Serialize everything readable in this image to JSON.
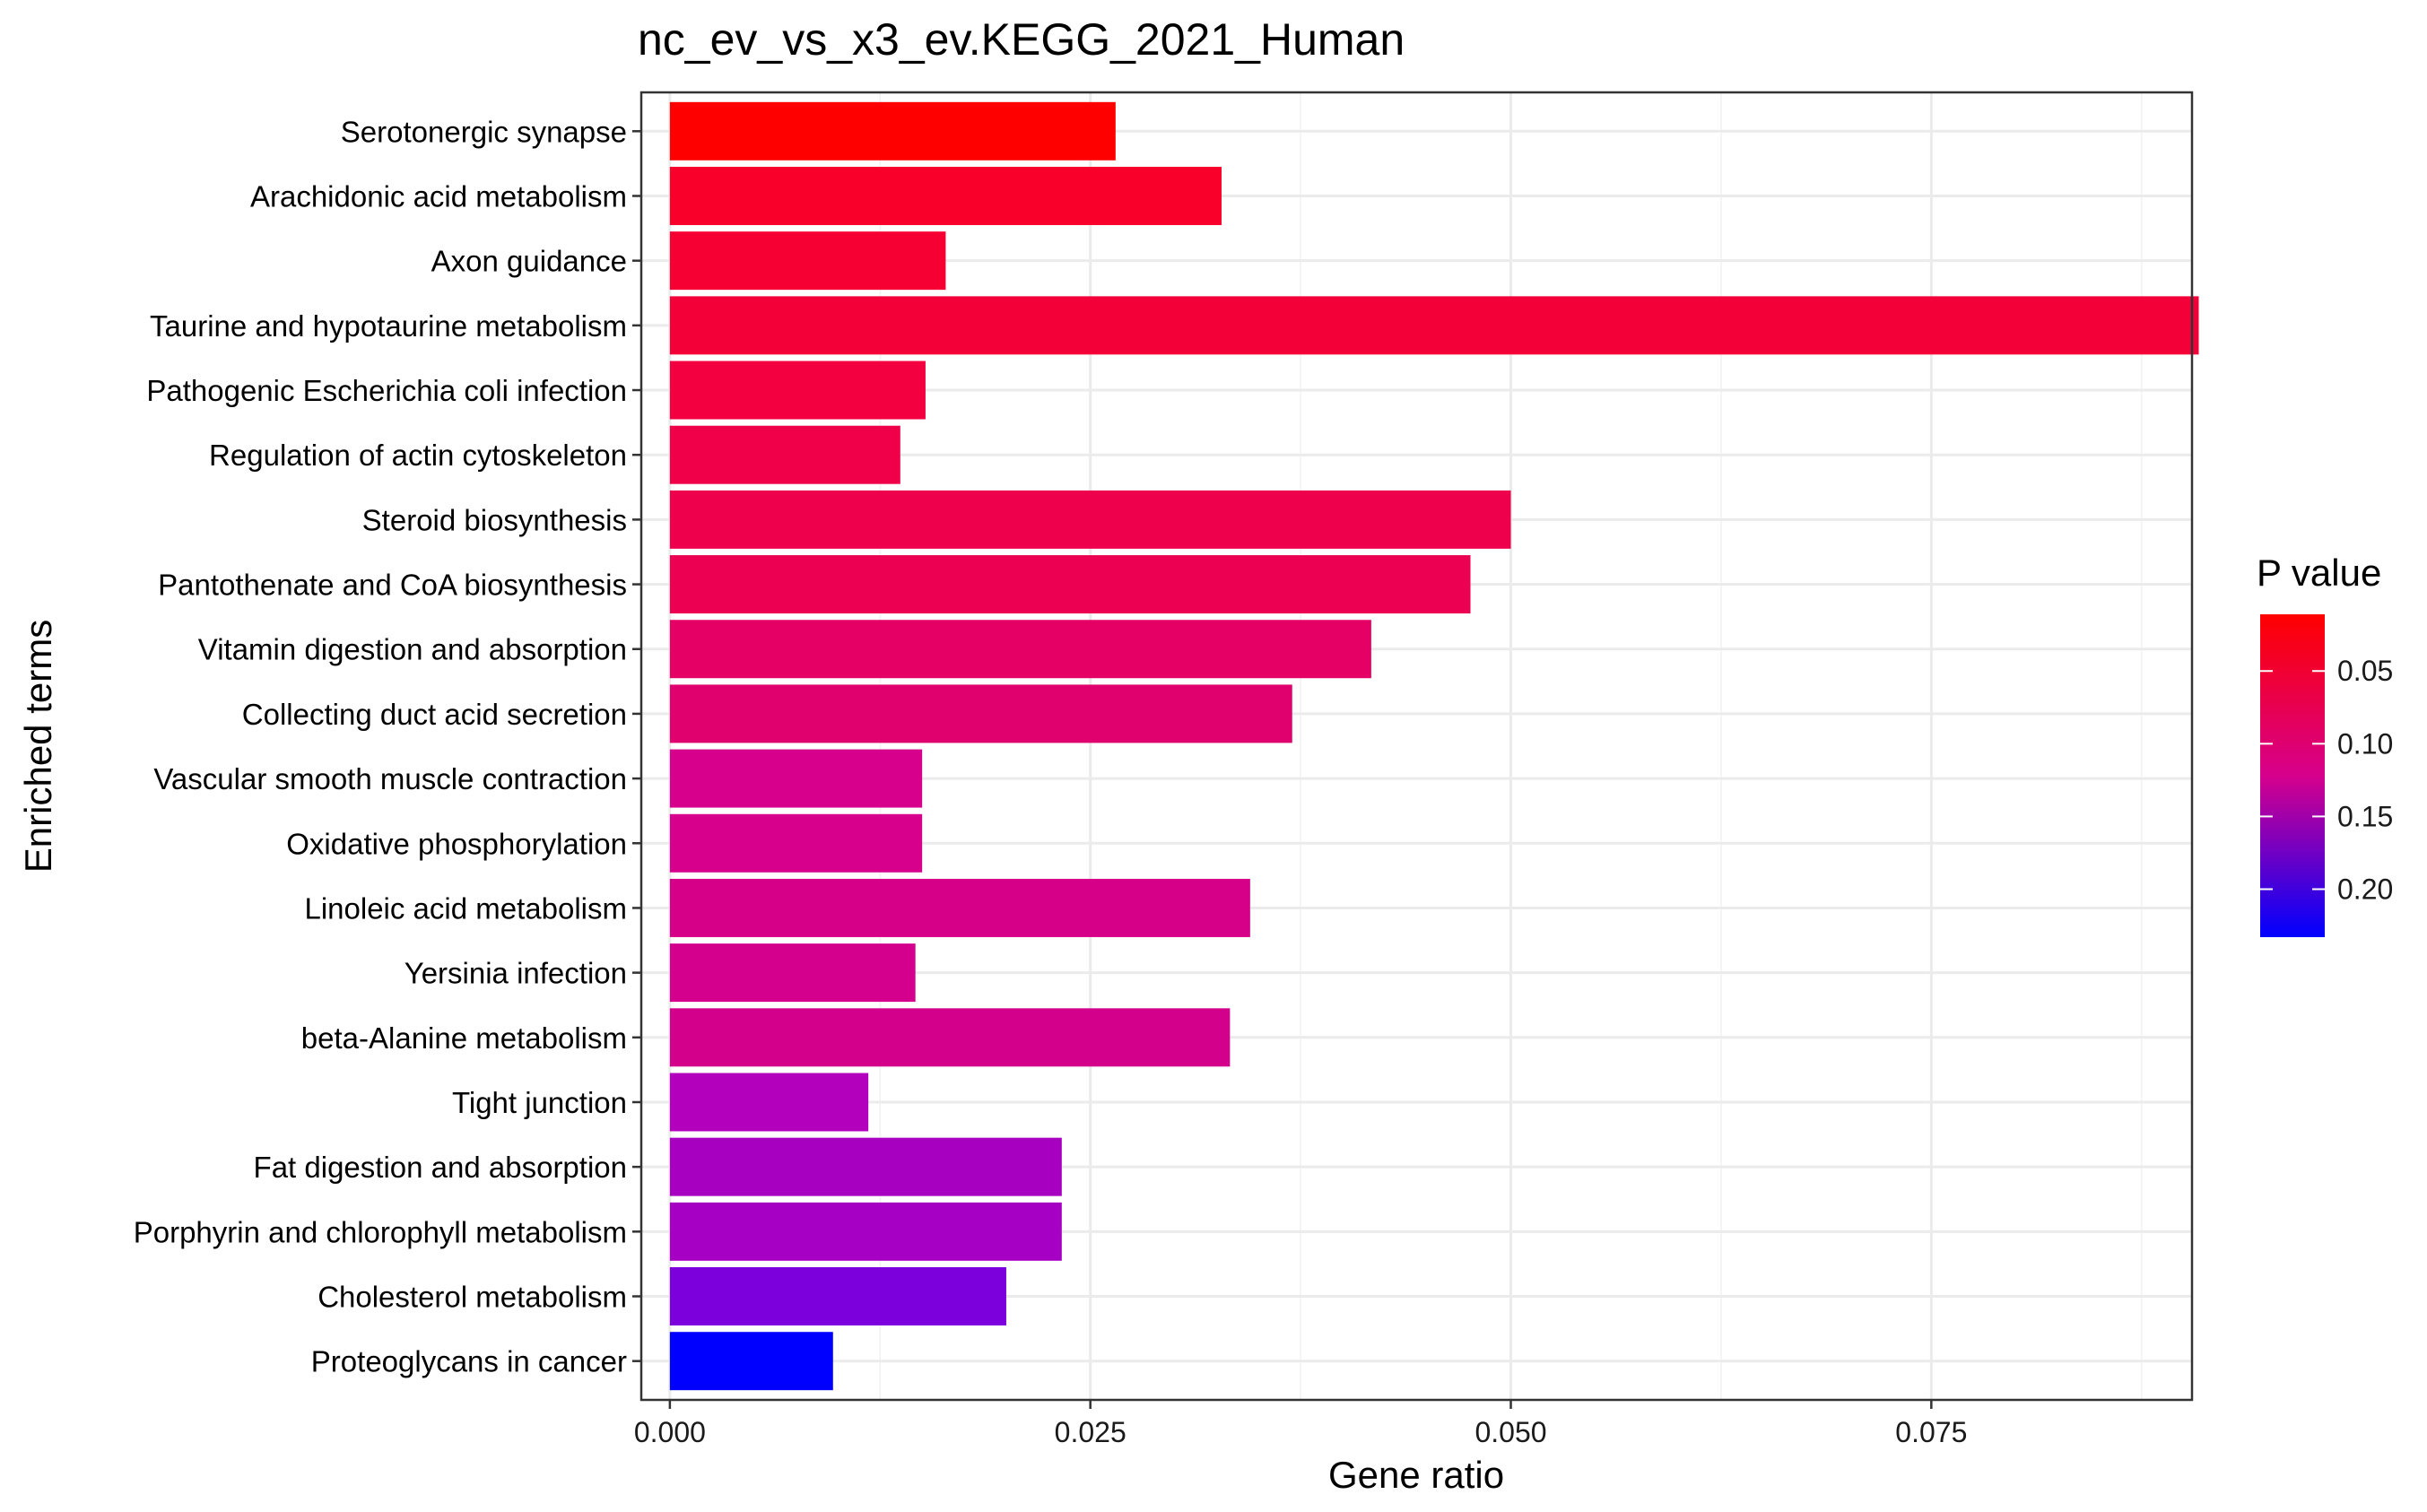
{
  "chart_data": {
    "type": "bar",
    "orientation": "horizontal",
    "title": "nc_ev_vs_x3_ev.KEGG_2021_Human",
    "xlabel": "Gene ratio",
    "ylabel": "Enriched terms",
    "xlim": [
      -0.0017,
      0.0905
    ],
    "xticks": [
      "0.000",
      "0.025",
      "0.050",
      "0.075"
    ],
    "xtick_values": [
      0,
      0.025,
      0.05,
      0.075
    ],
    "grid": true,
    "categories": [
      "Serotonergic synapse",
      "Arachidonic acid metabolism",
      "Axon guidance",
      "Taurine and hypotaurine metabolism",
      "Pathogenic Escherichia coli infection",
      "Regulation of actin cytoskeleton",
      "Steroid biosynthesis",
      "Pantothenate and CoA biosynthesis",
      "Vitamin digestion and absorption",
      "Collecting duct acid secretion",
      "Vascular smooth muscle contraction",
      "Oxidative phosphorylation",
      "Linoleic acid metabolism",
      "Yersinia infection",
      "beta-Alanine metabolism",
      "Tight junction",
      "Fat digestion and absorption",
      "Porphyrin and chlorophyll metabolism",
      "Cholesterol metabolism",
      "Proteoglycans in cancer"
    ],
    "values": [
      0.0265,
      0.0328,
      0.0164,
      0.0909,
      0.0152,
      0.0137,
      0.05,
      0.0476,
      0.0417,
      0.037,
      0.015,
      0.015,
      0.0345,
      0.0146,
      0.0333,
      0.0118,
      0.0233,
      0.0233,
      0.02,
      0.0097
    ],
    "bar_colors": [
      "#FF0000",
      "#F9002B",
      "#F60034",
      "#F40039",
      "#F2003F",
      "#EF0049",
      "#EE004D",
      "#EC0051",
      "#E50065",
      "#E0006E",
      "#D6008C",
      "#D6008C",
      "#D60088",
      "#D4008D",
      "#D3008C",
      "#B300BC",
      "#A800C0",
      "#A500C3",
      "#7B00DC",
      "#0000FF"
    ],
    "legend": {
      "title": "P value",
      "placement": "right",
      "type": "colorbar",
      "ticks": [
        "0.05",
        "0.10",
        "0.15",
        "0.20"
      ],
      "tick_values": [
        0.05,
        0.1,
        0.15,
        0.2
      ],
      "range": [
        0.011,
        0.233
      ],
      "color_low": "#FF0000",
      "color_high": "#0000FF"
    }
  }
}
